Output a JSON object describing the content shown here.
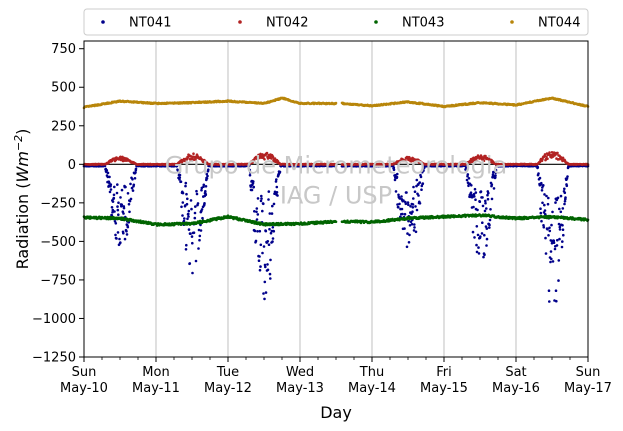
{
  "chart_data": {
    "type": "scatter",
    "xlabel": "Day",
    "ylabel": "Radiation",
    "ylabel_unit": "Wm",
    "ylabel_exp": "−2",
    "ylim": [
      -1250,
      800
    ],
    "yticks": [
      -1250,
      -1000,
      -750,
      -500,
      -250,
      0,
      250,
      500,
      750
    ],
    "ytick_labels": [
      "−1250",
      "−1000",
      "−750",
      "−500",
      "−250",
      "0",
      "250",
      "500",
      "750"
    ],
    "xlim": [
      "2020-05-10",
      "2020-05-17"
    ],
    "xticks": [
      {
        "day": "Sun",
        "date": "May-10"
      },
      {
        "day": "Mon",
        "date": "May-11"
      },
      {
        "day": "Tue",
        "date": "May-12"
      },
      {
        "day": "Wed",
        "date": "May-13"
      },
      {
        "day": "Thu",
        "date": "May-14"
      },
      {
        "day": "Fri",
        "date": "May-15"
      },
      {
        "day": "Sat",
        "date": "May-16"
      },
      {
        "day": "Sun",
        "date": "May-17"
      }
    ],
    "grid": "vertical",
    "legend_placement": "top",
    "data_gap": [
      "2020-05-13",
      "2020-05-13 14:00"
    ],
    "zero_line": true,
    "watermark": [
      "Grupo de Micrometeorologia",
      "IAG / USP"
    ],
    "series": [
      {
        "name": "NT041",
        "color": "#00008b",
        "baseline": -10,
        "daily_min": [
          -560,
          -700,
          -880,
          -600,
          -630,
          -900
        ],
        "daily_min_days": [
          "2020-05-10",
          "2020-05-11",
          "2020-05-12",
          "2020-05-14",
          "2020-05-15",
          "2020-05-16"
        ]
      },
      {
        "name": "NT042",
        "color": "#b22222",
        "baseline": 0,
        "daily_peak": [
          50,
          70,
          80,
          50,
          60,
          90
        ],
        "daily_peak_days": [
          "2020-05-10",
          "2020-05-11",
          "2020-05-12",
          "2020-05-14",
          "2020-05-15",
          "2020-05-16"
        ]
      },
      {
        "name": "NT043",
        "color": "#006400",
        "points": [
          [
            "2020-05-10 00:00",
            -345
          ],
          [
            "2020-05-10 12:00",
            -350
          ],
          [
            "2020-05-11 00:00",
            -390
          ],
          [
            "2020-05-11 12:00",
            -385
          ],
          [
            "2020-05-12 00:00",
            -340
          ],
          [
            "2020-05-12 12:00",
            -390
          ],
          [
            "2020-05-13 00:00",
            -385
          ],
          [
            "2020-05-13 14:00",
            -370
          ],
          [
            "2020-05-14 00:00",
            -375
          ],
          [
            "2020-05-14 12:00",
            -350
          ],
          [
            "2020-05-15 00:00",
            -340
          ],
          [
            "2020-05-15 12:00",
            -330
          ],
          [
            "2020-05-16 00:00",
            -350
          ],
          [
            "2020-05-16 12:00",
            -340
          ],
          [
            "2020-05-17 00:00",
            -360
          ]
        ]
      },
      {
        "name": "NT044",
        "color": "#b8860b",
        "points": [
          [
            "2020-05-10 00:00",
            370
          ],
          [
            "2020-05-10 12:00",
            410
          ],
          [
            "2020-05-11 00:00",
            395
          ],
          [
            "2020-05-11 12:00",
            400
          ],
          [
            "2020-05-12 00:00",
            410
          ],
          [
            "2020-05-12 12:00",
            395
          ],
          [
            "2020-05-12 18:00",
            430
          ],
          [
            "2020-05-13 00:00",
            395
          ],
          [
            "2020-05-13 14:00",
            395
          ],
          [
            "2020-05-14 00:00",
            380
          ],
          [
            "2020-05-14 12:00",
            405
          ],
          [
            "2020-05-15 00:00",
            375
          ],
          [
            "2020-05-15 12:00",
            400
          ],
          [
            "2020-05-16 00:00",
            385
          ],
          [
            "2020-05-16 12:00",
            430
          ],
          [
            "2020-05-17 00:00",
            375
          ]
        ]
      }
    ]
  }
}
